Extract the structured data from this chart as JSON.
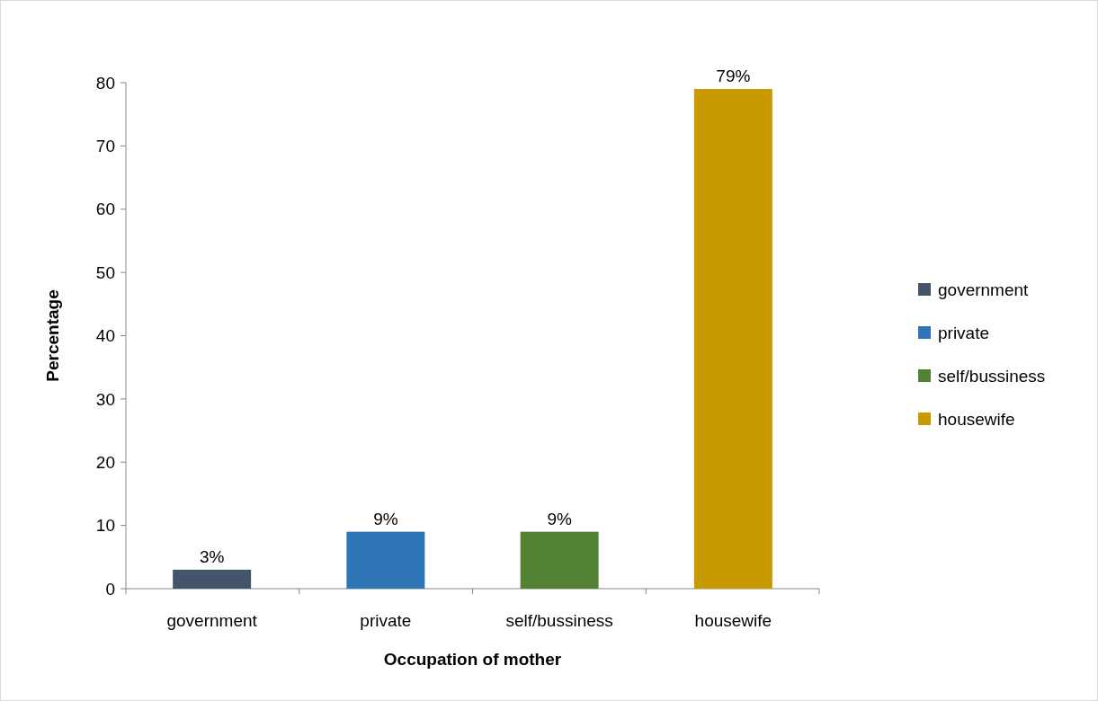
{
  "chart_data": {
    "type": "bar",
    "xlabel": "Occupation of mother",
    "ylabel": "Percentage",
    "categories": [
      "government",
      "private",
      "self/bussiness",
      "housewife"
    ],
    "series": [
      {
        "name": "government",
        "color": "#44546a",
        "values": [
          3,
          null,
          null,
          null
        ],
        "value_labels": [
          "3%",
          null,
          null,
          null
        ]
      },
      {
        "name": "private",
        "color": "#2e75b6",
        "values": [
          null,
          9,
          null,
          null
        ],
        "value_labels": [
          null,
          "9%",
          null,
          null
        ]
      },
      {
        "name": "self/bussiness",
        "color": "#548235",
        "values": [
          null,
          null,
          9,
          null
        ],
        "value_labels": [
          null,
          null,
          "9%",
          null
        ]
      },
      {
        "name": "housewife",
        "color": "#c99a00",
        "values": [
          null,
          null,
          null,
          79
        ],
        "value_labels": [
          null,
          null,
          null,
          "79%"
        ]
      }
    ],
    "ylim": [
      0,
      80
    ],
    "yticks": [
      0,
      10,
      20,
      30,
      40,
      50,
      60,
      70,
      80
    ],
    "grid": false,
    "legend": "right"
  }
}
